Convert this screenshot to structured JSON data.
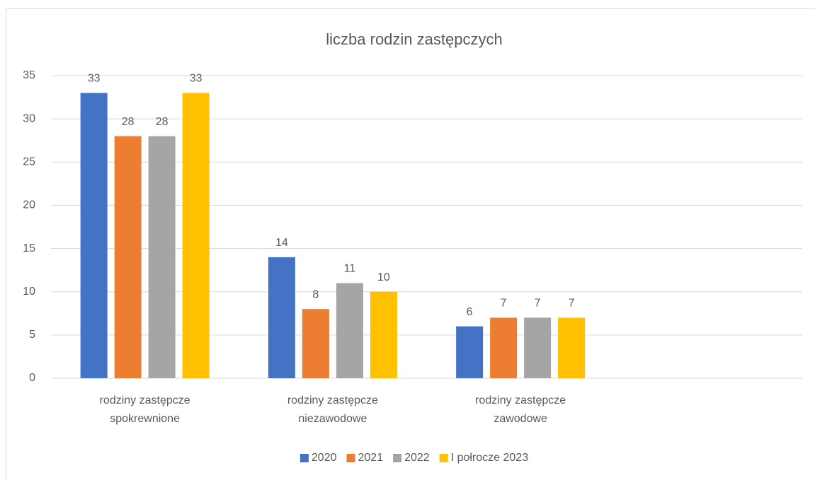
{
  "chart_data": {
    "type": "bar",
    "title": "liczba rodzin zastępczych",
    "categories": [
      "rodziny zastępcze spokrewnione",
      "rodziny zastępcze niezawodowe",
      "rodziny zastępcze zawodowe",
      null
    ],
    "series": [
      {
        "name": "2020",
        "color": "#4472c4",
        "values": [
          33,
          14,
          6,
          null
        ]
      },
      {
        "name": "2021",
        "color": "#ed7d31",
        "values": [
          28,
          8,
          7,
          null
        ]
      },
      {
        "name": "2022",
        "color": "#a5a5a5",
        "values": [
          28,
          11,
          7,
          null
        ]
      },
      {
        "name": "I połrocze 2023",
        "color": "#ffc000",
        "values": [
          33,
          10,
          7,
          null
        ]
      }
    ],
    "ylim": [
      0,
      35
    ],
    "yticks": [
      0,
      5,
      10,
      15,
      20,
      25,
      30,
      35
    ],
    "grid": true,
    "legend": "bottom"
  }
}
